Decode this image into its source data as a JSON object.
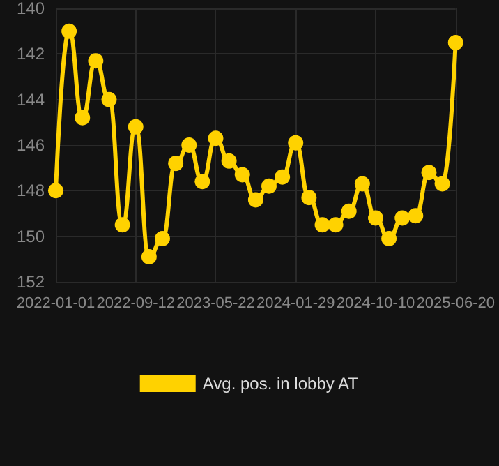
{
  "chart_data": {
    "type": "line",
    "categories": [
      "2022-01-01",
      null,
      null,
      null,
      null,
      null,
      "2022-09-12",
      null,
      null,
      null,
      null,
      null,
      "2023-05-22",
      null,
      null,
      null,
      null,
      null,
      "2024-01-29",
      null,
      null,
      null,
      null,
      null,
      "2024-10-10",
      null,
      null,
      null,
      null,
      null,
      "2025-06-20"
    ],
    "series": [
      {
        "name": "Avg. pos. in lobby AT",
        "color": "#ffd200",
        "values": [
          148,
          141,
          144.8,
          142.3,
          144,
          149.5,
          145.2,
          150.9,
          150.1,
          146.8,
          146,
          147.6,
          145.7,
          146.7,
          147.3,
          148.4,
          147.8,
          147.4,
          145.9,
          148.3,
          149.5,
          149.5,
          148.9,
          147.7,
          149.2,
          150.1,
          149.2,
          149.1,
          147.2,
          147.7,
          141.5
        ]
      }
    ],
    "ylim": [
      152,
      140
    ],
    "yticks": [
      140,
      142,
      144,
      146,
      148,
      150,
      152
    ],
    "grid": true,
    "legend": "bottom",
    "marker": "circle",
    "line_style": "solid"
  }
}
